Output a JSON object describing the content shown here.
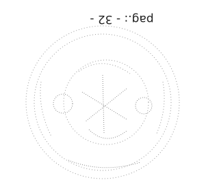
{
  "page": {
    "text": "pag.: - 32 -"
  }
}
